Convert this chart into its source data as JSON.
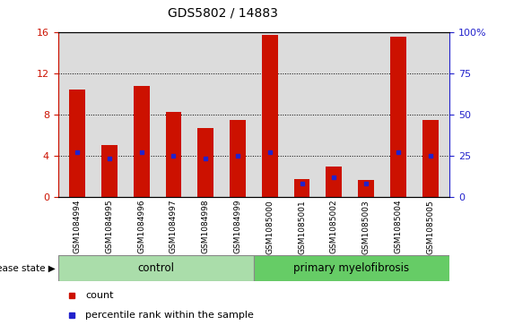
{
  "title": "GDS5802 / 14883",
  "categories": [
    "GSM1084994",
    "GSM1084995",
    "GSM1084996",
    "GSM1084997",
    "GSM1084998",
    "GSM1084999",
    "GSM1085000",
    "GSM1085001",
    "GSM1085002",
    "GSM1085003",
    "GSM1085004",
    "GSM1085005"
  ],
  "count_values": [
    10.4,
    5.0,
    10.8,
    8.3,
    6.7,
    7.5,
    15.8,
    1.7,
    2.9,
    1.6,
    15.6,
    7.5
  ],
  "percentile_values": [
    27,
    23,
    27,
    25,
    23,
    25,
    27,
    8,
    12,
    8,
    27,
    25
  ],
  "left_ylim": [
    0,
    16
  ],
  "right_ylim": [
    0,
    100
  ],
  "left_yticks": [
    0,
    4,
    8,
    12,
    16
  ],
  "right_yticks": [
    0,
    25,
    50,
    75,
    100
  ],
  "right_yticklabels": [
    "0",
    "25",
    "50",
    "75",
    "100%"
  ],
  "bar_color": "#CC1100",
  "marker_color": "#2222CC",
  "bar_width": 0.5,
  "control_label": "control",
  "disease_label": "primary myelofibrosis",
  "disease_state_label": "disease state",
  "legend_count_label": "count",
  "legend_pct_label": "percentile rank within the sample",
  "plot_bg_color": "#DCDCDC",
  "control_band_color": "#AADDAA",
  "disease_band_color": "#66CC66",
  "title_color": "#000000",
  "left_axis_color": "#CC1100",
  "right_axis_color": "#2222CC",
  "grid_color": "#000000",
  "n_control": 6,
  "n_disease": 6
}
